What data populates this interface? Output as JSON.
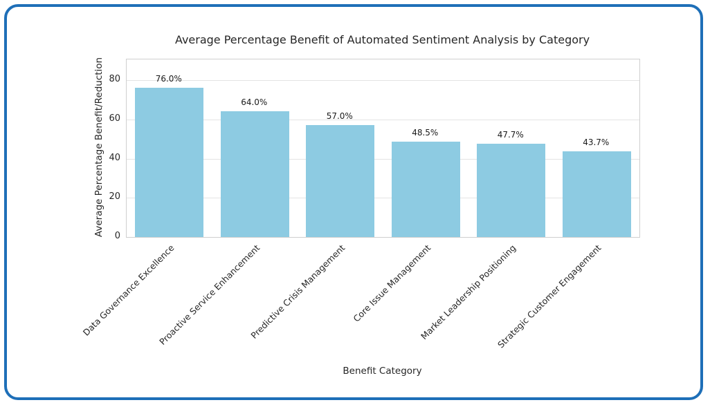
{
  "chart_data": {
    "type": "bar",
    "title": "Average Percentage Benefit of Automated Sentiment Analysis by Category",
    "xlabel": "Benefit Category",
    "ylabel": "Average Percentage Benefit/Reduction",
    "categories": [
      "Data Governance Excellence",
      "Proactive Service Enhancement",
      "Predictive Crisis Management",
      "Core Issue Management",
      "Market Leadership Positioning",
      "Strategic Customer Engagement"
    ],
    "values": [
      76.0,
      64.0,
      57.0,
      48.5,
      47.7,
      43.7
    ],
    "bar_labels": [
      "76.0%",
      "64.0%",
      "57.0%",
      "48.5%",
      "47.7%",
      "43.7%"
    ],
    "yticks": [
      0,
      20,
      40,
      60,
      80
    ],
    "ylim": [
      0,
      90.6
    ],
    "grid": "horizontal",
    "legend": "none",
    "bar_width_fraction": 0.8
  },
  "colors": {
    "bar": "#8DCBE2",
    "card_border": "#1E6FB8",
    "grid": "#E4E4E4",
    "spine": "#CFCFCF",
    "text": "#262626"
  }
}
